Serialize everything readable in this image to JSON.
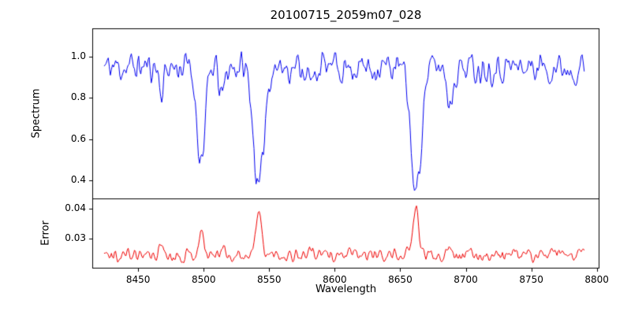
{
  "chart_data": {
    "type": "line",
    "title": "20100715_2059m07_028",
    "xlabel": "Wavelength",
    "grid": false,
    "legend": "none",
    "background": "#ffffff",
    "frame_color": "#000000",
    "x": {
      "lim": [
        8415,
        8802
      ],
      "ticks": [
        8450,
        8500,
        8550,
        8600,
        8650,
        8700,
        8750,
        8800
      ],
      "tick_labels": [
        "8450",
        "8500",
        "8550",
        "8600",
        "8650",
        "8700",
        "8750",
        "8800"
      ]
    },
    "panels": [
      {
        "name": "spectrum",
        "ylabel": "Spectrum",
        "color": "#0000ee",
        "ylim": [
          0.31,
          1.14
        ],
        "ticks": [
          1.0,
          0.8,
          0.6,
          0.4
        ],
        "tick_labels": [
          "1.0",
          "0.8",
          "0.6",
          "0.4"
        ]
      },
      {
        "name": "error",
        "ylabel": "Error",
        "color": "#ee0000",
        "ylim": [
          0.02,
          0.0434
        ],
        "ticks": [
          0.04,
          0.03
        ],
        "tick_labels": [
          "0.04",
          "0.03"
        ]
      }
    ],
    "model": {
      "x_start": 8424,
      "x_end": 8790,
      "step": 0.8,
      "seed": 11,
      "continuum": 0.952,
      "noise_amp": 0.21,
      "error_base": 0.0245,
      "error_noise_amp": 0.006,
      "absorption_lines": [
        {
          "center": 8468,
          "depth": 0.13,
          "sigma": 1.6,
          "err_peak": 0.0038,
          "err_sigma": 1.6
        },
        {
          "center": 8498,
          "depth": 0.45,
          "sigma": 3.2,
          "err_peak": 0.0075,
          "err_sigma": 2.0
        },
        {
          "center": 8514,
          "depth": 0.15,
          "sigma": 2.0,
          "err_peak": 0.0025,
          "err_sigma": 1.8
        },
        {
          "center": 8542,
          "depth": 0.61,
          "sigma": 3.8,
          "err_peak": 0.014,
          "err_sigma": 2.2
        },
        {
          "center": 8582,
          "depth": 0.1,
          "sigma": 1.8,
          "err_peak": 0.002,
          "err_sigma": 1.6
        },
        {
          "center": 8662,
          "depth": 0.62,
          "sigma": 3.8,
          "err_peak": 0.0155,
          "err_sigma": 2.2
        },
        {
          "center": 8688,
          "depth": 0.18,
          "sigma": 2.2,
          "err_peak": 0.004,
          "err_sigma": 1.8
        }
      ]
    }
  }
}
